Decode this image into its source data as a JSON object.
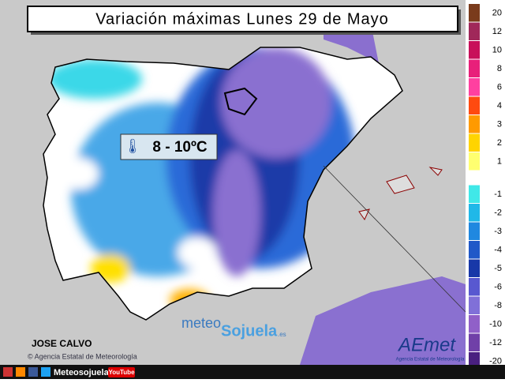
{
  "title": "Variación máximas Lunes 29 de Mayo",
  "annotation": "8 - 10ºC",
  "author": "JOSE CALVO",
  "credit": "© Agencia Estatal de Meteorología",
  "watermark": {
    "prefix": "meteo",
    "name": "Sojuela",
    "suffix": ".es"
  },
  "logo": {
    "name": "AEmet",
    "subtitle": "Agencia Estatal de Meteorología"
  },
  "footer": {
    "site": "Meteosojuela",
    "video": "YouTube"
  },
  "legend": {
    "labels": [
      20,
      12,
      10,
      8,
      6,
      4,
      3,
      2,
      1,
      -1,
      -2,
      -3,
      -4,
      -5,
      -6,
      -8,
      -10,
      -12,
      -20
    ],
    "colors": [
      "#7a3b1c",
      "#a0285a",
      "#c8105a",
      "#e8207a",
      "#ff40a0",
      "#ff4a10",
      "#ff9a00",
      "#ffd400",
      "#ffff70",
      "#40e8e8",
      "#20b8e8",
      "#2088e0",
      "#2058c8",
      "#1838a8",
      "#5858d0",
      "#8070d8",
      "#9060c8",
      "#7040a8",
      "#4a2080"
    ]
  }
}
